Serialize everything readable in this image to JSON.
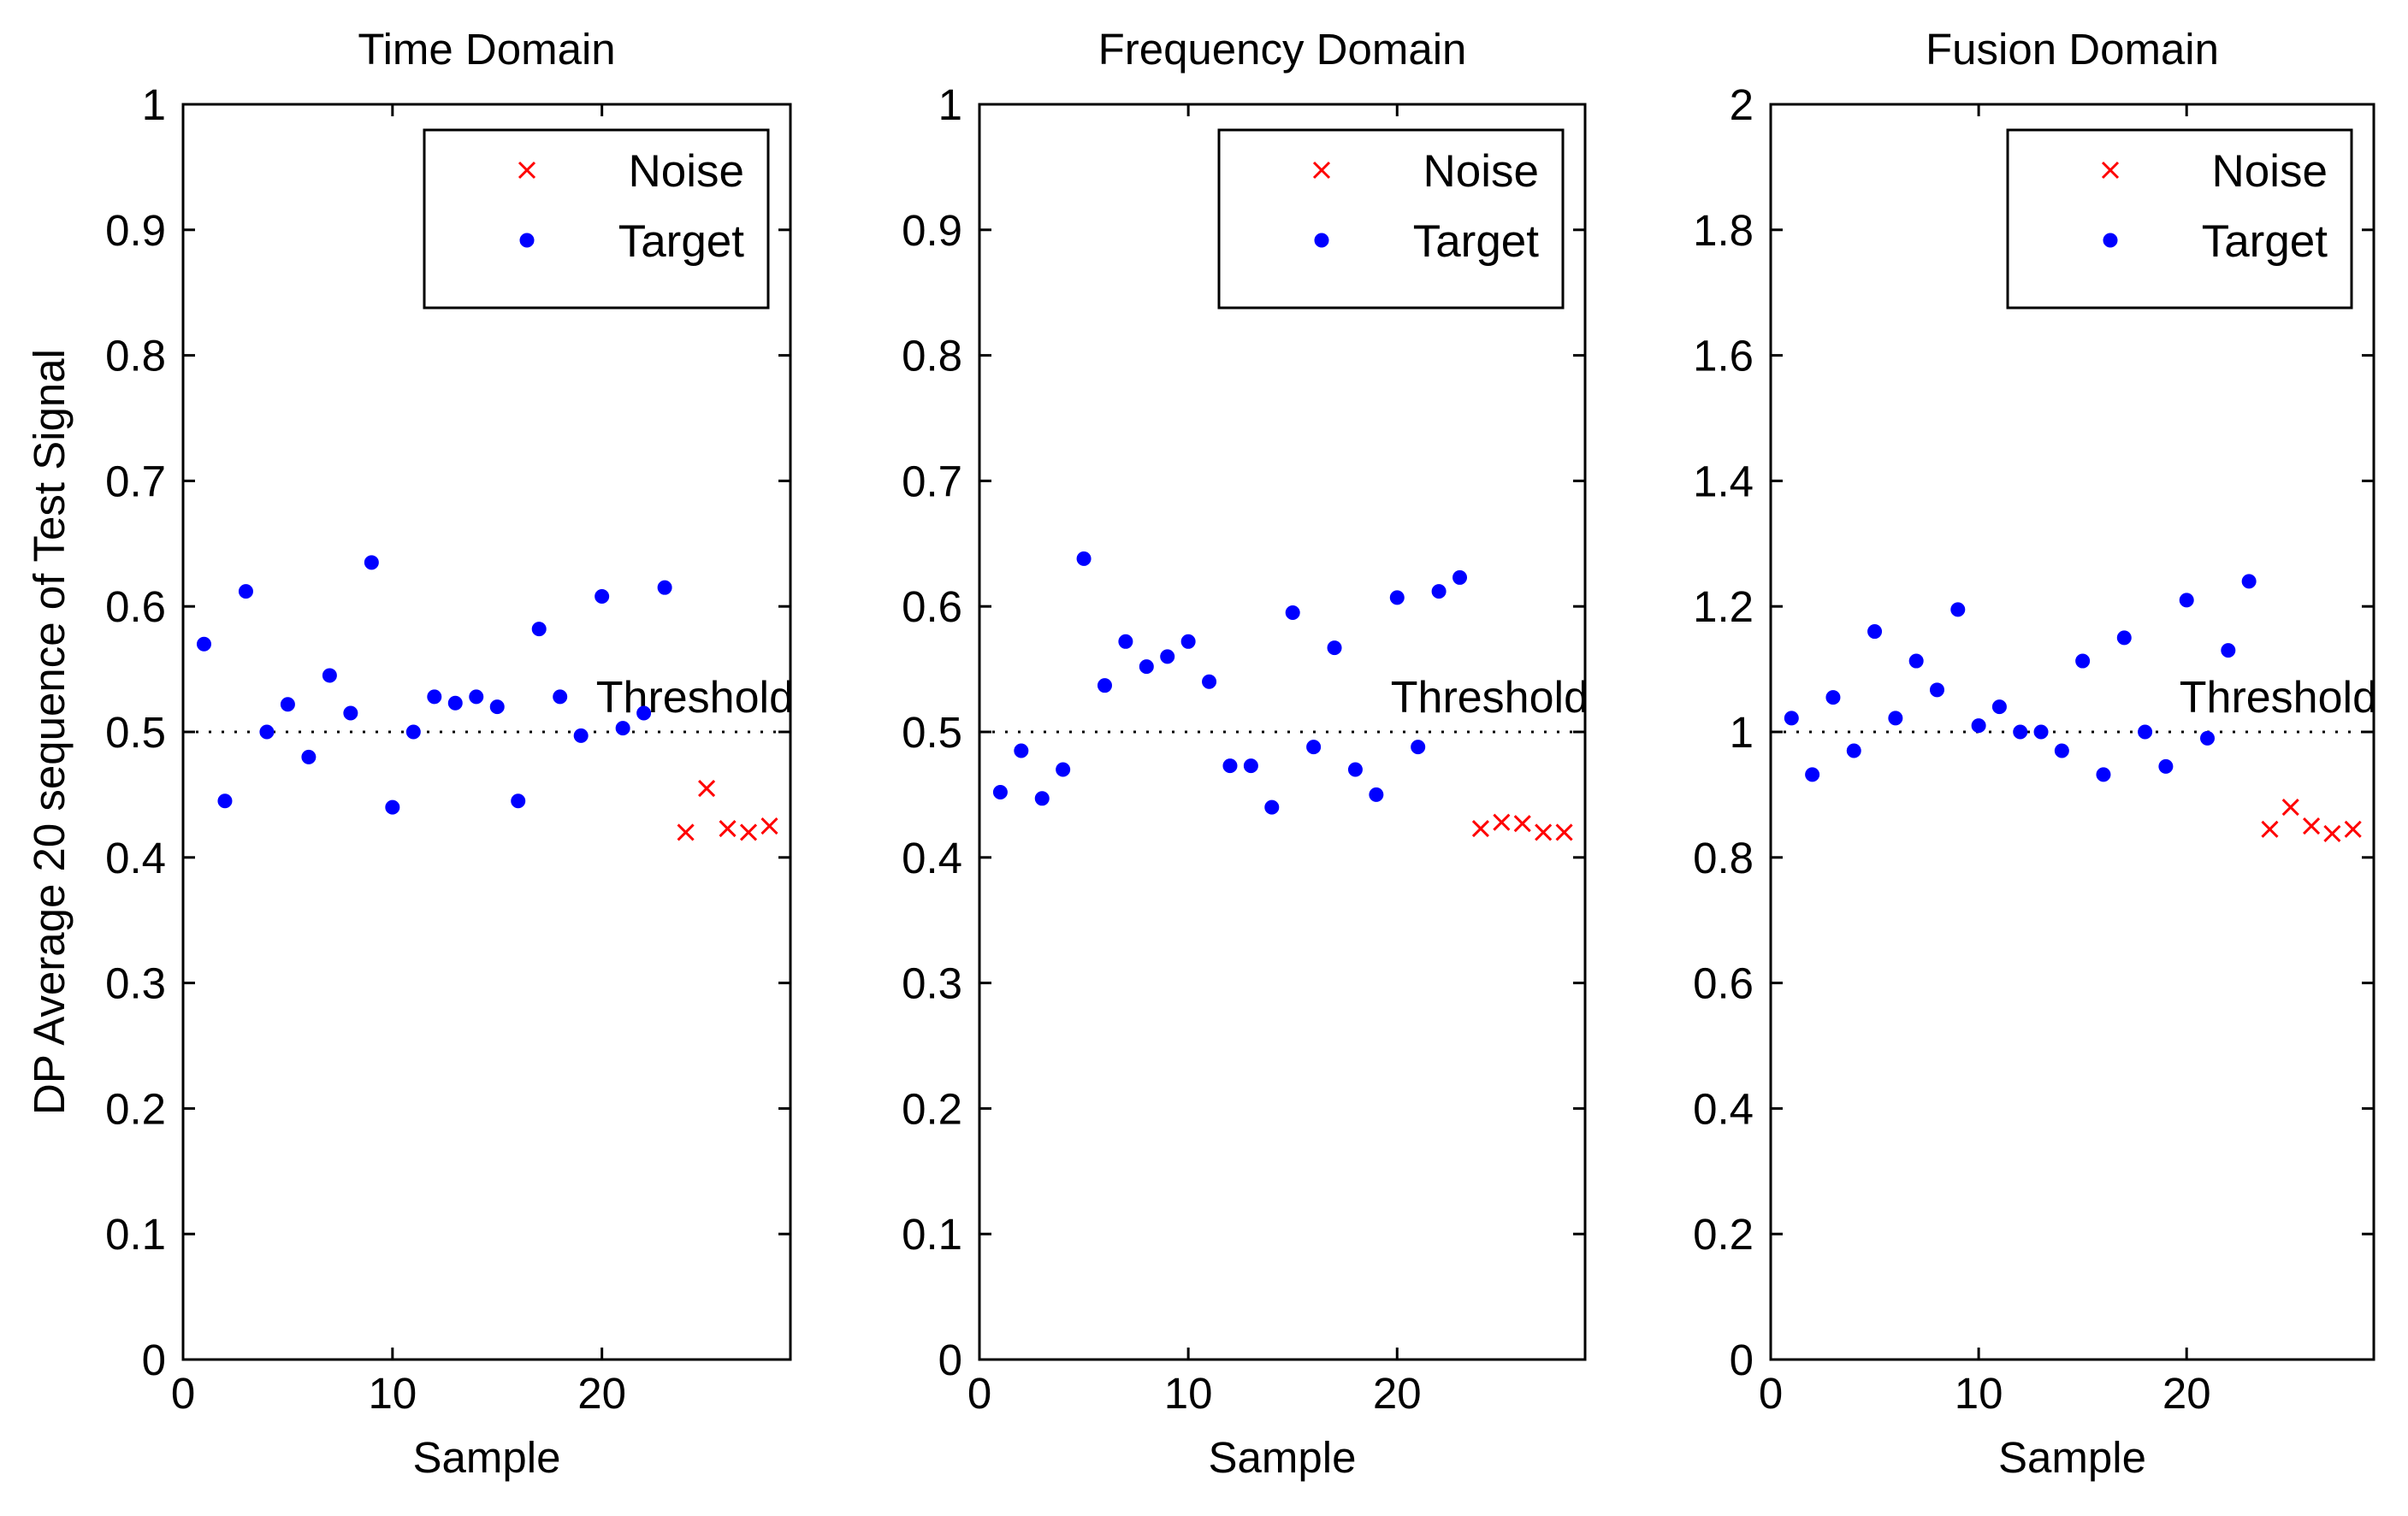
{
  "chart_data": [
    {
      "type": "scatter",
      "title": "Time Domain",
      "xlabel": "Sample",
      "ylabel": "DP Average 20 sequence of Test Signal",
      "xlim": [
        0,
        29
      ],
      "ylim": [
        0,
        1
      ],
      "xticks": [
        0,
        10,
        20
      ],
      "xtick_labels": [
        "0",
        "10",
        "20"
      ],
      "yticks": [
        0,
        0.1,
        0.2,
        0.3,
        0.4,
        0.5,
        0.6,
        0.7,
        0.8,
        0.9,
        1
      ],
      "ytick_labels": [
        "0",
        "0.1",
        "0.2",
        "0.3",
        "0.4",
        "0.5",
        "0.6",
        "0.7",
        "0.8",
        "0.9",
        "1"
      ],
      "threshold": {
        "value": 0.5,
        "label": "Threshold"
      },
      "legend": {
        "position": "top-right",
        "entries": [
          {
            "label": "Noise",
            "marker": "x",
            "color": "#ff0000"
          },
          {
            "label": "Target",
            "marker": "dot",
            "color": "#0000ff"
          }
        ]
      },
      "series": [
        {
          "name": "Target",
          "x": [
            1,
            2,
            3,
            4,
            5,
            6,
            7,
            8,
            9,
            10,
            11,
            12,
            13,
            14,
            15,
            16,
            17,
            18,
            19,
            20,
            21,
            22,
            23
          ],
          "y": [
            0.57,
            0.445,
            0.612,
            0.5,
            0.522,
            0.48,
            0.545,
            0.515,
            0.635,
            0.44,
            0.5,
            0.528,
            0.523,
            0.528,
            0.52,
            0.445,
            0.582,
            0.528,
            0.497,
            0.608,
            0.503,
            0.515,
            0.615
          ]
        },
        {
          "name": "Noise",
          "x": [
            24,
            25,
            26,
            27,
            28
          ],
          "y": [
            0.42,
            0.455,
            0.423,
            0.42,
            0.425
          ]
        }
      ]
    },
    {
      "type": "scatter",
      "title": "Frequency Domain",
      "xlabel": "Sample",
      "ylabel": "",
      "xlim": [
        0,
        29
      ],
      "ylim": [
        0,
        1
      ],
      "xticks": [
        0,
        10,
        20
      ],
      "xtick_labels": [
        "0",
        "10",
        "20"
      ],
      "yticks": [
        0,
        0.1,
        0.2,
        0.3,
        0.4,
        0.5,
        0.6,
        0.7,
        0.8,
        0.9,
        1
      ],
      "ytick_labels": [
        "0",
        "0.1",
        "0.2",
        "0.3",
        "0.4",
        "0.5",
        "0.6",
        "0.7",
        "0.8",
        "0.9",
        "1"
      ],
      "threshold": {
        "value": 0.5,
        "label": "Threshold"
      },
      "legend": {
        "position": "top-right",
        "entries": [
          {
            "label": "Noise",
            "marker": "x",
            "color": "#ff0000"
          },
          {
            "label": "Target",
            "marker": "dot",
            "color": "#0000ff"
          }
        ]
      },
      "series": [
        {
          "name": "Target",
          "x": [
            1,
            2,
            3,
            4,
            5,
            6,
            7,
            8,
            9,
            10,
            11,
            12,
            13,
            14,
            15,
            16,
            17,
            18,
            19,
            20,
            21,
            22,
            23
          ],
          "y": [
            0.452,
            0.485,
            0.447,
            0.47,
            0.638,
            0.537,
            0.572,
            0.552,
            0.56,
            0.572,
            0.54,
            0.473,
            0.473,
            0.44,
            0.595,
            0.488,
            0.567,
            0.47,
            0.45,
            0.607,
            0.488,
            0.612,
            0.623
          ]
        },
        {
          "name": "Noise",
          "x": [
            24,
            25,
            26,
            27,
            28
          ],
          "y": [
            0.423,
            0.428,
            0.427,
            0.42,
            0.42
          ]
        }
      ]
    },
    {
      "type": "scatter",
      "title": "Fusion Domain",
      "xlabel": "Sample",
      "ylabel": "",
      "xlim": [
        0,
        29
      ],
      "ylim": [
        0,
        2
      ],
      "xticks": [
        0,
        10,
        20
      ],
      "xtick_labels": [
        "0",
        "10",
        "20"
      ],
      "yticks": [
        0,
        0.2,
        0.4,
        0.6,
        0.8,
        1,
        1.2,
        1.4,
        1.6,
        1.8,
        2
      ],
      "ytick_labels": [
        "0",
        "0.2",
        "0.4",
        "0.6",
        "0.8",
        "1",
        "1.2",
        "1.4",
        "1.6",
        "1.8",
        "2"
      ],
      "threshold": {
        "value": 1,
        "label": "Threshold"
      },
      "legend": {
        "position": "top-right",
        "entries": [
          {
            "label": "Noise",
            "marker": "x",
            "color": "#ff0000"
          },
          {
            "label": "Target",
            "marker": "dot",
            "color": "#0000ff"
          }
        ]
      },
      "series": [
        {
          "name": "Target",
          "x": [
            1,
            2,
            3,
            4,
            5,
            6,
            7,
            8,
            9,
            10,
            11,
            12,
            13,
            14,
            15,
            16,
            17,
            18,
            19,
            20,
            21,
            22,
            23
          ],
          "y": [
            1.022,
            0.932,
            1.055,
            0.97,
            1.16,
            1.022,
            1.113,
            1.067,
            1.195,
            1.01,
            1.04,
            1.0,
            1.0,
            0.97,
            1.113,
            0.932,
            1.15,
            1.0,
            0.945,
            1.21,
            0.99,
            1.13,
            1.24
          ]
        },
        {
          "name": "Noise",
          "x": [
            24,
            25,
            26,
            27,
            28
          ],
          "y": [
            0.845,
            0.88,
            0.85,
            0.838,
            0.845
          ]
        }
      ]
    }
  ]
}
